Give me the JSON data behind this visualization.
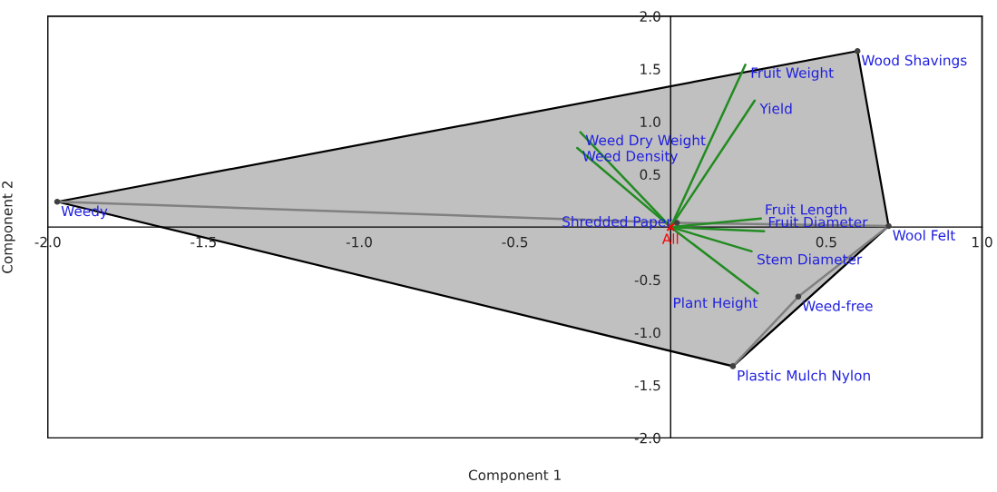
{
  "chart_data": {
    "type": "scatter",
    "xlabel": "Component 1",
    "ylabel": "Component 2",
    "xlim": [
      -2,
      1
    ],
    "ylim": [
      -2,
      2
    ],
    "xticks": [
      {
        "value": -2,
        "label": "-2.0"
      },
      {
        "value": -1.5,
        "label": "-1.5"
      },
      {
        "value": -1,
        "label": "-1.0"
      },
      {
        "value": -0.5,
        "label": "-0.5"
      },
      {
        "value": 0.5,
        "label": "0.5"
      },
      {
        "value": 1,
        "label": "1.0"
      }
    ],
    "yticks": [
      {
        "value": -2,
        "label": "-2.0"
      },
      {
        "value": -1.5,
        "label": "-1.5"
      },
      {
        "value": -1,
        "label": "-1.0"
      },
      {
        "value": -0.5,
        "label": "-0.5"
      },
      {
        "value": 0.5,
        "label": "0.5"
      },
      {
        "value": 1,
        "label": "1.0"
      },
      {
        "value": 1.5,
        "label": "1.5"
      },
      {
        "value": 2,
        "label": "2.0"
      }
    ],
    "grid": false,
    "legend": false,
    "series": [
      {
        "type": "area",
        "color": "#c0c0c0",
        "x": [
          -1.97,
          0.6,
          0.7,
          0.2,
          -1.97
        ],
        "values": [
          0.24,
          1.67,
          0.01,
          -1.32,
          0.24
        ]
      },
      {
        "type": "line",
        "color": "#808080",
        "x": [
          -1.97,
          0.02
        ],
        "values": [
          0.24,
          0.04
        ]
      },
      {
        "type": "line",
        "color": "#808080",
        "x": [
          0.02,
          0.7
        ],
        "values": [
          0.04,
          0.01
        ]
      },
      {
        "type": "line",
        "color": "#808080",
        "x": [
          0.7,
          0.41
        ],
        "values": [
          0.01,
          -0.66
        ]
      },
      {
        "type": "line",
        "color": "#808080",
        "x": [
          0.41,
          0.2
        ],
        "values": [
          -0.66,
          -1.32
        ]
      },
      {
        "color": "#404040",
        "marker": "circle",
        "x": [
          -1.97,
          0.6,
          0.7,
          0.41,
          0.2,
          0.02
        ],
        "values": [
          0.24,
          1.67,
          0.01,
          -0.66,
          -1.32,
          0.04
        ]
      },
      {
        "type": "scatter",
        "name": "All",
        "color": "#ff0000",
        "marker": "cross",
        "x": [
          0
        ],
        "values": [
          0
        ]
      },
      {
        "type": "line",
        "name": "Fruit Weight",
        "color": "#228b22",
        "x": [
          0,
          0.24
        ],
        "values": [
          0,
          1.54
        ]
      },
      {
        "type": "line",
        "name": "Yield",
        "color": "#228b22",
        "x": [
          0,
          0.27
        ],
        "values": [
          0,
          1.2
        ]
      },
      {
        "type": "line",
        "name": "Weed Dry Weight",
        "color": "#228b22",
        "x": [
          0,
          -0.29
        ],
        "values": [
          0,
          0.9
        ]
      },
      {
        "type": "line",
        "name": "Weed Density",
        "color": "#228b22",
        "x": [
          0,
          -0.3
        ],
        "values": [
          0,
          0.75
        ]
      },
      {
        "type": "line",
        "name": "Fruit Length",
        "color": "#228b22",
        "x": [
          0,
          0.29
        ],
        "values": [
          0,
          0.08
        ]
      },
      {
        "type": "line",
        "name": "Fruit Diameter",
        "color": "#228b22",
        "x": [
          0,
          0.3
        ],
        "values": [
          0,
          -0.04
        ]
      },
      {
        "type": "line",
        "name": "Stem Diameter",
        "color": "#228b22",
        "x": [
          0,
          0.26
        ],
        "values": [
          0,
          -0.23
        ]
      },
      {
        "type": "line",
        "name": "Plant Height",
        "color": "#228b22",
        "x": [
          0,
          0.28
        ],
        "values": [
          0,
          -0.63
        ]
      }
    ],
    "annotations": [
      {
        "text": "Weedy",
        "x": -1.97,
        "y": 0.24
      },
      {
        "text": "Wood Shavings",
        "x": 0.6,
        "y": 1.67
      },
      {
        "text": "Wool Felt",
        "x": 0.7,
        "y": 0.01
      },
      {
        "text": "Weed-free",
        "x": 0.41,
        "y": -0.66
      },
      {
        "text": "Plastic Mulch Nylon",
        "x": 0.2,
        "y": -1.32
      },
      {
        "text": "Shredded Paper",
        "x": 0.02,
        "y": 0.04
      }
    ]
  }
}
